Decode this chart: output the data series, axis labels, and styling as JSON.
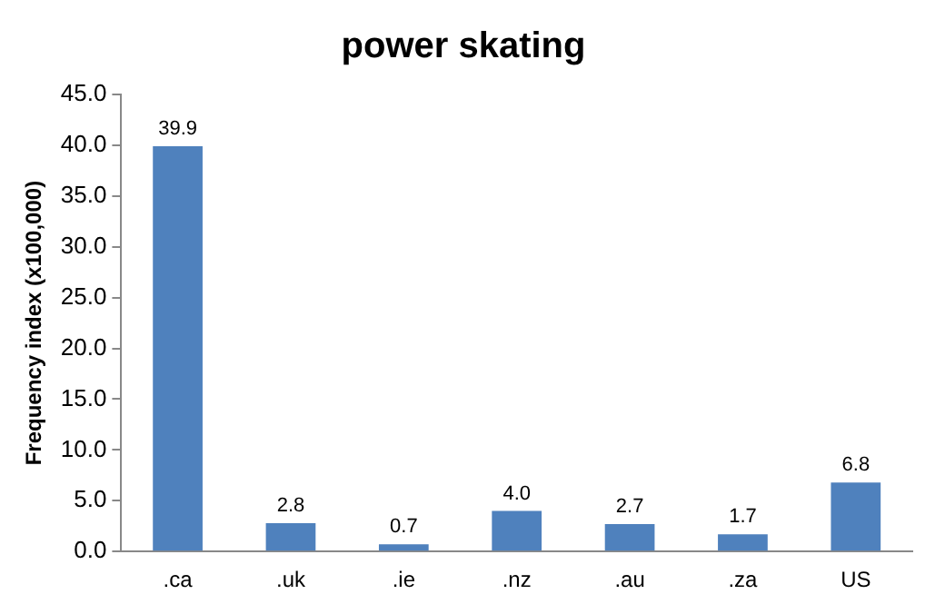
{
  "chart_data": {
    "type": "bar",
    "title": "power skating",
    "ylabel": "Frequency index (x100,000)",
    "categories": [
      ".ca",
      ".uk",
      ".ie",
      ".nz",
      ".au",
      ".za",
      "US"
    ],
    "values": [
      39.9,
      2.8,
      0.7,
      4.0,
      2.7,
      1.7,
      6.8
    ],
    "value_labels": [
      "39.9",
      "2.8",
      "0.7",
      "4.0",
      "2.7",
      "1.7",
      "6.8"
    ],
    "color": "#4f81bd",
    "ylim": [
      0,
      45
    ],
    "yticks": [
      {
        "value": 0,
        "label": "0.0"
      },
      {
        "value": 5,
        "label": "5.0"
      },
      {
        "value": 10,
        "label": "10.0"
      },
      {
        "value": 15,
        "label": "15.0"
      },
      {
        "value": 20,
        "label": "20.0"
      },
      {
        "value": 25,
        "label": "25.0"
      },
      {
        "value": 30,
        "label": "30.0"
      },
      {
        "value": 35,
        "label": "35.0"
      },
      {
        "value": 40,
        "label": "40.0"
      },
      {
        "value": 45,
        "label": "45.0"
      }
    ],
    "grid": false,
    "legend": false
  }
}
